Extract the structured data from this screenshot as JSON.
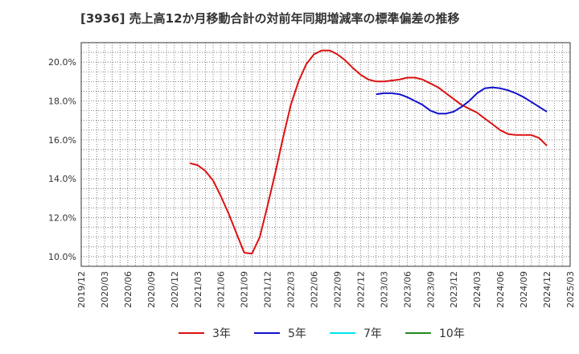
{
  "chart_data": {
    "type": "line",
    "title": "[3936]  売上高12か月移動合計の対前年同期増減率の標準偏差の推移",
    "xlabel": "",
    "ylabel": "",
    "ylim": [
      9.5,
      21.0
    ],
    "y_ticks": [
      10.0,
      12.0,
      14.0,
      16.0,
      18.0,
      20.0
    ],
    "y_tick_labels": [
      "10.0%",
      "12.0%",
      "14.0%",
      "16.0%",
      "18.0%",
      "20.0%"
    ],
    "x_start": "2019/12",
    "x_end": "2025/03",
    "x_tick_labels": [
      "2019/12",
      "2020/03",
      "2020/06",
      "2020/09",
      "2020/12",
      "2021/03",
      "2021/06",
      "2021/09",
      "2021/12",
      "2022/03",
      "2022/06",
      "2022/09",
      "2022/12",
      "2023/03",
      "2023/06",
      "2023/09",
      "2023/12",
      "2024/03",
      "2024/06",
      "2024/09",
      "2024/12",
      "2025/03"
    ],
    "grid": true,
    "legend_position": "bottom",
    "series": [
      {
        "name": "3年",
        "color": "#dd1111",
        "x": [
          "2021/02",
          "2021/03",
          "2021/04",
          "2021/05",
          "2021/06",
          "2021/07",
          "2021/08",
          "2021/09",
          "2021/10",
          "2021/11",
          "2021/12",
          "2022/01",
          "2022/02",
          "2022/03",
          "2022/04",
          "2022/05",
          "2022/06",
          "2022/07",
          "2022/08",
          "2022/09",
          "2022/10",
          "2022/11",
          "2022/12",
          "2023/01",
          "2023/02",
          "2023/03",
          "2023/04",
          "2023/05",
          "2023/06",
          "2023/07",
          "2023/08",
          "2023/09",
          "2023/10",
          "2023/11",
          "2023/12",
          "2024/01",
          "2024/02",
          "2024/03",
          "2024/04",
          "2024/05",
          "2024/06",
          "2024/07",
          "2024/08",
          "2024/09",
          "2024/10",
          "2024/11",
          "2024/12"
        ],
        "values": [
          14.8,
          14.7,
          14.4,
          13.9,
          13.1,
          12.2,
          11.2,
          10.2,
          10.15,
          11.0,
          12.6,
          14.3,
          16.1,
          17.8,
          19.0,
          19.9,
          20.4,
          20.6,
          20.6,
          20.4,
          20.1,
          19.7,
          19.35,
          19.1,
          19.0,
          19.0,
          19.05,
          19.1,
          19.2,
          19.2,
          19.1,
          18.9,
          18.7,
          18.4,
          18.1,
          17.8,
          17.6,
          17.4,
          17.1,
          16.8,
          16.5,
          16.3,
          16.25,
          16.25,
          16.25,
          16.1,
          15.7
        ]
      },
      {
        "name": "5年",
        "color": "#1111cc",
        "x": [
          "2023/02",
          "2023/03",
          "2023/04",
          "2023/05",
          "2023/06",
          "2023/07",
          "2023/08",
          "2023/09",
          "2023/10",
          "2023/11",
          "2023/12",
          "2024/01",
          "2024/02",
          "2024/03",
          "2024/04",
          "2024/05",
          "2024/06",
          "2024/07",
          "2024/08",
          "2024/09",
          "2024/10",
          "2024/11",
          "2024/12"
        ],
        "values": [
          18.35,
          18.4,
          18.4,
          18.35,
          18.2,
          18.0,
          17.8,
          17.5,
          17.35,
          17.35,
          17.45,
          17.7,
          18.0,
          18.4,
          18.65,
          18.7,
          18.65,
          18.55,
          18.4,
          18.2,
          17.95,
          17.7,
          17.45
        ]
      },
      {
        "name": "7年",
        "color": "#00e5ee",
        "x": [],
        "values": []
      },
      {
        "name": "10年",
        "color": "#228b22",
        "x": [],
        "values": []
      }
    ]
  }
}
